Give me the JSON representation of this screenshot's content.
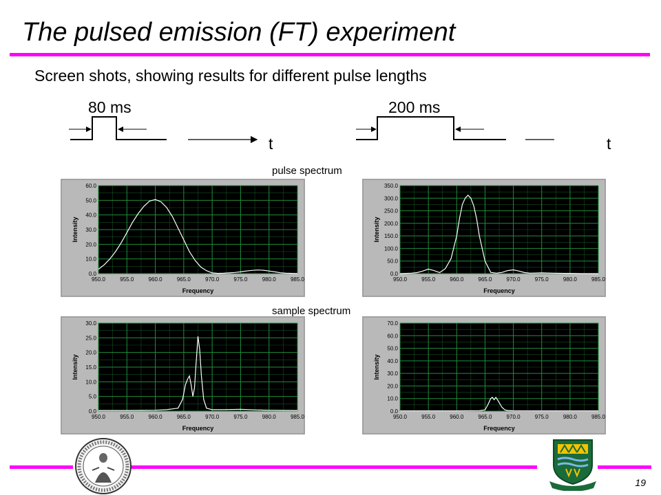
{
  "title": "The pulsed emission (FT) experiment",
  "subtitle": "Screen shots, showing results for different pulse lengths",
  "pulses": [
    {
      "label": "80 ms",
      "axis_label": "t"
    },
    {
      "label": "200 ms",
      "axis_label": "t"
    }
  ],
  "captions": {
    "pulse": "pulse spectrum",
    "sample": "sample spectrum"
  },
  "page_number": "19",
  "colors": {
    "accent": "#ff00ff",
    "plot_bg": "#000000",
    "grid": "#1f8f3a",
    "curve": "#ffffff",
    "frame": "#b9b9b9"
  },
  "logos": [
    "university-seal-icon",
    "university-crest-icon"
  ],
  "chart_data": [
    {
      "type": "line",
      "title": "",
      "xlabel": "Frequency",
      "ylabel": "Intensity",
      "xlim": [
        950,
        985
      ],
      "ylim": [
        0,
        60
      ],
      "x_ticks": [
        "950.0",
        "955.0",
        "960.0",
        "965.0",
        "970.0",
        "975.0",
        "980.0",
        "985.0"
      ],
      "y_ticks": [
        "0.0",
        "10.0",
        "20.0",
        "30.0",
        "40.0",
        "50.0",
        "60.0"
      ],
      "grid": true,
      "series": [
        {
          "x": [
            950,
            951,
            952,
            953,
            954,
            955,
            956,
            957,
            958,
            959,
            960,
            961,
            962,
            963,
            964,
            965,
            966,
            967,
            968,
            969,
            970,
            971,
            972,
            973,
            974,
            975,
            976,
            977,
            978,
            979,
            980,
            981,
            982,
            983,
            984,
            985
          ],
          "y": [
            3,
            6,
            10,
            15,
            21,
            28,
            35,
            41,
            46,
            49.5,
            50.5,
            49,
            45,
            39,
            31,
            23,
            15,
            9,
            4.5,
            2,
            0.5,
            0.2,
            0.3,
            0.5,
            0.8,
            1.2,
            1.8,
            2.2,
            2.5,
            2.3,
            1.8,
            1.2,
            0.6,
            0.3,
            0.2,
            0.1
          ]
        }
      ]
    },
    {
      "type": "line",
      "title": "",
      "xlabel": "Frequency",
      "ylabel": "Intensity",
      "xlim": [
        950,
        985
      ],
      "ylim": [
        0,
        350
      ],
      "x_ticks": [
        "950.0",
        "955.0",
        "960.0",
        "965.0",
        "970.0",
        "975.0",
        "980.0",
        "985.0"
      ],
      "y_ticks": [
        "0.0",
        "50.0",
        "100.0",
        "150.0",
        "200.0",
        "250.0",
        "300.0",
        "350.0"
      ],
      "grid": true,
      "series": [
        {
          "x": [
            950,
            952,
            953,
            954,
            955,
            956,
            957,
            958,
            959,
            960,
            960.5,
            961,
            961.5,
            962,
            962.5,
            963,
            963.5,
            964,
            965,
            966,
            967,
            968,
            969,
            970,
            971,
            972,
            973,
            975,
            977,
            979,
            980,
            982,
            985
          ],
          "y": [
            0,
            2,
            4,
            10,
            18,
            12,
            4,
            20,
            60,
            150,
            220,
            275,
            300,
            312,
            300,
            270,
            220,
            150,
            50,
            5,
            2,
            5,
            12,
            15,
            10,
            4,
            2,
            3,
            2,
            1,
            1,
            0,
            0
          ]
        }
      ]
    },
    {
      "type": "line",
      "title": "",
      "xlabel": "Frequency",
      "ylabel": "Intensity",
      "xlim": [
        950,
        985
      ],
      "ylim": [
        0,
        30
      ],
      "x_ticks": [
        "950.0",
        "955.0",
        "960.0",
        "965.0",
        "970.0",
        "975.0",
        "980.0",
        "985.0"
      ],
      "y_ticks": [
        "0.0",
        "5.0",
        "10.0",
        "15.0",
        "20.0",
        "25.0",
        "30.0"
      ],
      "grid": true,
      "series": [
        {
          "x": [
            950,
            955,
            960,
            962,
            964,
            964.8,
            965.3,
            965.7,
            966,
            966.3,
            966.6,
            966.9,
            967.2,
            967.5,
            967.8,
            968.1,
            968.5,
            969,
            970,
            972,
            975,
            978,
            980,
            985
          ],
          "y": [
            0.2,
            0.2,
            0.3,
            0.5,
            1,
            4,
            9,
            11,
            12,
            9,
            5,
            8,
            17,
            25.5,
            21,
            12,
            4,
            1,
            0.5,
            0.5,
            0.6,
            0.4,
            0.3,
            0.2
          ]
        }
      ]
    },
    {
      "type": "line",
      "title": "",
      "xlabel": "Frequency",
      "ylabel": "Intensity",
      "xlim": [
        950,
        985
      ],
      "ylim": [
        0,
        70
      ],
      "x_ticks": [
        "950.0",
        "955.0",
        "960.0",
        "965.0",
        "970.0",
        "975.0",
        "980.0",
        "985.0"
      ],
      "y_ticks": [
        "0.0",
        "10.0",
        "20.0",
        "30.0",
        "40.0",
        "50.0",
        "60.0",
        "70.0"
      ],
      "grid": true,
      "series": [
        {
          "x": [
            950,
            960,
            964,
            965,
            965.5,
            966,
            966.3,
            966.6,
            966.9,
            967.2,
            967.6,
            968,
            968.5,
            969,
            970,
            975,
            985
          ],
          "y": [
            0.2,
            0.2,
            0.4,
            1,
            5,
            10,
            11,
            9,
            11,
            9,
            6,
            3,
            1,
            0.5,
            0.3,
            0.2,
            0.2
          ]
        }
      ]
    }
  ]
}
